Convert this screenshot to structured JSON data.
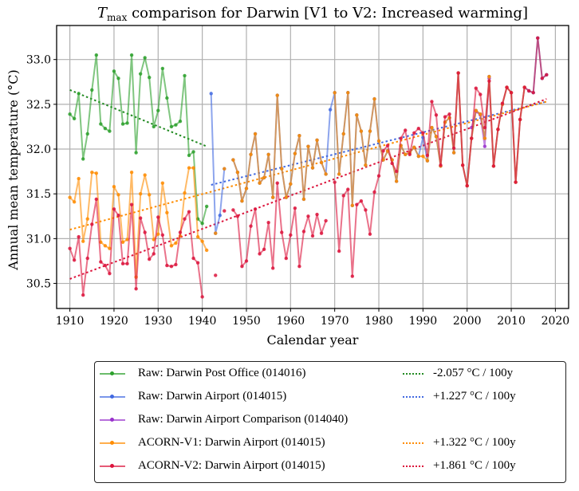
{
  "chart_data": {
    "type": "line",
    "title": "T_max comparison for Darwin   [V1 to V2: Increased warming]",
    "title_parts": {
      "symbol": "T",
      "subscript": "max",
      "rest": " comparison for Darwin   [V1 to V2: Increased warming]"
    },
    "xlabel": "Calendar year",
    "ylabel": "Annual mean temperature (°C)",
    "xlim": [
      1907,
      2023
    ],
    "ylim": [
      30.22,
      33.38
    ],
    "xticks": [
      1910,
      1920,
      1930,
      1940,
      1950,
      1960,
      1970,
      1980,
      1990,
      2000,
      2010,
      2020
    ],
    "yticks": [
      30.5,
      31.0,
      31.5,
      32.0,
      32.5,
      33.0
    ],
    "xtick_labels": [
      "1910",
      "1920",
      "1930",
      "1940",
      "1950",
      "1960",
      "1970",
      "1980",
      "1990",
      "2000",
      "2010",
      "2020"
    ],
    "ytick_labels": [
      "30.5",
      "31.0",
      "31.5",
      "32.0",
      "32.5",
      "33.0"
    ],
    "grid": true,
    "legend_position": "below-center",
    "series": [
      {
        "name": "Raw: Darwin Post Office (014016)",
        "color": "#2ca02c",
        "x": [
          1910,
          1911,
          1912,
          1913,
          1914,
          1915,
          1916,
          1917,
          1918,
          1919,
          1920,
          1921,
          1922,
          1923,
          1924,
          1925,
          1926,
          1927,
          1928,
          1929,
          1930,
          1931,
          1932,
          1933,
          1934,
          1935,
          1936,
          1937,
          1938,
          1939,
          1940,
          1941
        ],
        "y": [
          32.39,
          32.34,
          32.62,
          31.89,
          32.17,
          32.66,
          33.05,
          32.28,
          32.23,
          32.2,
          32.87,
          32.79,
          32.28,
          32.29,
          33.05,
          31.96,
          32.84,
          33.02,
          32.8,
          32.25,
          32.43,
          32.9,
          32.57,
          32.25,
          32.27,
          32.31,
          32.82,
          31.93,
          31.97,
          31.22,
          31.17,
          31.36
        ]
      },
      {
        "name": "Raw: Darwin Airport (014015)",
        "color": "#4169e1",
        "x": [
          1942,
          1943,
          1944,
          1945,
          1946,
          1947,
          1948,
          1949,
          1950,
          1951,
          1952,
          1953,
          1954,
          1955,
          1956,
          1957,
          1958,
          1959,
          1960,
          1961,
          1962,
          1963,
          1964,
          1965,
          1966,
          1967,
          1968,
          1969,
          1970,
          1971,
          1972,
          1973,
          1974,
          1975,
          1976,
          1977,
          1978,
          1979,
          1980,
          1981,
          1982,
          1983,
          1984,
          1985,
          1986,
          1987,
          1988,
          1989,
          1990,
          1991,
          1992,
          1993,
          1994,
          1995,
          1996,
          1997,
          1998,
          1999,
          2000,
          2001,
          2002,
          2003,
          2004,
          2005,
          2006,
          2007,
          2008,
          2009,
          2010,
          2011,
          2012,
          2013,
          2014,
          2015,
          2016,
          2017,
          2018
        ],
        "y": [
          32.62,
          31.06,
          31.26,
          31.78,
          null,
          31.88,
          31.74,
          31.42,
          31.56,
          31.94,
          32.17,
          31.62,
          31.68,
          31.94,
          31.46,
          32.6,
          31.78,
          31.46,
          31.61,
          31.95,
          32.15,
          31.44,
          32.03,
          31.79,
          32.1,
          31.85,
          31.72,
          32.44,
          32.63,
          31.72,
          32.17,
          32.63,
          31.37,
          32.38,
          32.2,
          31.82,
          32.2,
          32.56,
          32.09,
          31.88,
          31.98,
          31.88,
          31.64,
          32.04,
          31.94,
          31.96,
          32.02,
          31.92,
          32.13,
          31.87,
          32.24,
          32.14,
          31.81,
          32.3,
          32.35,
          31.96,
          32.85,
          31.82,
          31.59,
          32.12,
          32.43,
          32.39,
          32.12,
          32.81,
          31.81,
          32.22,
          32.5,
          32.69,
          32.63,
          31.63,
          32.33,
          32.69,
          32.65,
          32.63,
          33.24,
          32.79,
          32.83
        ]
      },
      {
        "name": "Raw: Darwin Airport Comparison (014040)",
        "color": "#9932cc",
        "x": [
          2001,
          2002,
          2003,
          2004,
          2005
        ],
        "y": [
          32.24,
          32.42,
          32.38,
          32.03,
          32.79
        ]
      },
      {
        "name": "ACORN-V1: Darwin Airport (014015)",
        "color": "#ff8c00",
        "x": [
          1910,
          1911,
          1912,
          1913,
          1914,
          1915,
          1916,
          1917,
          1918,
          1919,
          1920,
          1921,
          1922,
          1923,
          1924,
          1925,
          1926,
          1927,
          1928,
          1929,
          1930,
          1931,
          1932,
          1933,
          1934,
          1935,
          1936,
          1937,
          1938,
          1939,
          1940,
          1941,
          1942,
          1943,
          1944,
          1945,
          1946,
          1947,
          1948,
          1949,
          1950,
          1951,
          1952,
          1953,
          1954,
          1955,
          1956,
          1957,
          1958,
          1959,
          1960,
          1961,
          1962,
          1963,
          1964,
          1965,
          1966,
          1967,
          1968,
          1969,
          1970,
          1971,
          1972,
          1973,
          1974,
          1975,
          1976,
          1977,
          1978,
          1979,
          1980,
          1981,
          1982,
          1983,
          1984,
          1985,
          1986,
          1987,
          1988,
          1989,
          1990,
          1991,
          1992,
          1993,
          1994,
          1995,
          1996,
          1997,
          1998,
          1999,
          2000,
          2001,
          2002,
          2003,
          2004,
          2005,
          2006,
          2007,
          2008,
          2009,
          2010,
          2011,
          2012,
          2013
        ],
        "y": [
          31.46,
          31.41,
          31.67,
          30.97,
          31.22,
          31.74,
          31.73,
          30.96,
          30.92,
          30.89,
          31.58,
          31.49,
          30.96,
          30.99,
          31.74,
          30.57,
          31.5,
          31.71,
          31.49,
          30.99,
          31.05,
          31.62,
          31.29,
          30.92,
          30.95,
          31.03,
          31.51,
          31.79,
          31.79,
          31.02,
          30.97,
          30.87,
          null,
          31.06,
          null,
          31.78,
          null,
          31.88,
          31.74,
          31.42,
          31.56,
          31.94,
          32.17,
          31.62,
          31.68,
          31.94,
          31.46,
          32.6,
          31.78,
          31.46,
          31.61,
          31.95,
          32.15,
          31.44,
          32.03,
          31.79,
          32.1,
          31.85,
          31.72,
          null,
          32.63,
          31.72,
          32.17,
          32.63,
          31.37,
          32.38,
          32.2,
          31.82,
          32.2,
          32.56,
          32.09,
          31.88,
          31.98,
          31.88,
          31.64,
          32.04,
          31.94,
          31.96,
          32.02,
          31.92,
          31.92,
          31.87,
          32.24,
          32.14,
          31.81,
          32.3,
          32.35,
          31.96,
          32.85,
          31.82,
          31.59,
          32.12,
          32.43,
          32.39,
          32.12,
          32.81,
          31.81,
          32.22,
          32.5,
          32.69,
          32.63,
          31.63,
          32.33,
          32.69
        ]
      },
      {
        "name": "ACORN-V2: Darwin Airport (014015)",
        "color": "#dc143c",
        "x": [
          1910,
          1911,
          1912,
          1913,
          1914,
          1915,
          1916,
          1917,
          1918,
          1919,
          1920,
          1921,
          1922,
          1923,
          1924,
          1925,
          1926,
          1927,
          1928,
          1929,
          1930,
          1931,
          1932,
          1933,
          1934,
          1935,
          1936,
          1937,
          1938,
          1939,
          1940,
          1941,
          1942,
          1943,
          1944,
          1945,
          1946,
          1947,
          1948,
          1949,
          1950,
          1951,
          1952,
          1953,
          1954,
          1955,
          1956,
          1957,
          1958,
          1959,
          1960,
          1961,
          1962,
          1963,
          1964,
          1965,
          1966,
          1967,
          1968,
          1969,
          1970,
          1971,
          1972,
          1973,
          1974,
          1975,
          1976,
          1977,
          1978,
          1979,
          1980,
          1981,
          1982,
          1983,
          1984,
          1985,
          1986,
          1987,
          1988,
          1989,
          1990,
          1991,
          1992,
          1993,
          1994,
          1995,
          1996,
          1997,
          1998,
          1999,
          2000,
          2001,
          2002,
          2003,
          2004,
          2005,
          2006,
          2007,
          2008,
          2009,
          2010,
          2011,
          2012,
          2013,
          2014,
          2015,
          2016,
          2017,
          2018
        ],
        "y": [
          30.89,
          30.76,
          31.02,
          30.37,
          30.78,
          31.16,
          31.44,
          30.74,
          30.7,
          30.61,
          31.33,
          31.26,
          30.72,
          30.72,
          31.38,
          30.44,
          31.23,
          31.07,
          30.77,
          30.83,
          31.24,
          31.04,
          30.7,
          30.69,
          30.71,
          31.07,
          31.22,
          31.3,
          30.78,
          30.73,
          30.35,
          null,
          null,
          30.59,
          null,
          31.31,
          null,
          31.32,
          31.25,
          30.69,
          30.75,
          31.14,
          31.33,
          30.83,
          30.88,
          31.18,
          30.67,
          31.62,
          31.07,
          30.78,
          31.04,
          31.34,
          30.69,
          31.08,
          31.25,
          31.03,
          31.27,
          31.06,
          31.2,
          null,
          31.63,
          30.86,
          31.48,
          31.55,
          30.58,
          31.38,
          31.42,
          31.32,
          31.05,
          31.52,
          31.7,
          31.98,
          32.04,
          31.84,
          31.75,
          32.12,
          32.21,
          31.94,
          32.18,
          32.23,
          32.18,
          31.93,
          32.53,
          32.38,
          31.82,
          32.36,
          32.39,
          32.01,
          32.85,
          31.82,
          31.59,
          32.12,
          32.68,
          32.61,
          32.24,
          32.76,
          31.81,
          32.22,
          32.51,
          32.69,
          32.63,
          31.63,
          32.33,
          32.69,
          32.65,
          32.63,
          33.24,
          32.79,
          32.83
        ]
      }
    ],
    "trendlines": [
      {
        "label": "-2.057 °C/100y",
        "color": "#228b22",
        "x": [
          1910,
          1941
        ],
        "y": [
          32.66,
          32.03
        ]
      },
      {
        "label": "+1.227 °C/100y",
        "color": "#4169e1",
        "x": [
          1942,
          2018
        ],
        "y": [
          31.6,
          32.53
        ]
      },
      {
        "label": "+1.322 °C/100y",
        "color": "#ff8c00",
        "x": [
          1910,
          2018
        ],
        "y": [
          31.1,
          32.53
        ]
      },
      {
        "label": "+1.861 °C/100y",
        "color": "#dc143c",
        "x": [
          1910,
          2018
        ],
        "y": [
          30.55,
          32.56
        ]
      }
    ]
  },
  "legend": {
    "series_labels": [
      "Raw: Darwin Post Office (014016)",
      "Raw: Darwin Airport (014015)",
      "Raw: Darwin Airport Comparison (014040)",
      "ACORN-V1: Darwin Airport (014015)",
      "ACORN-V2: Darwin Airport (014015)"
    ],
    "series_colors": [
      "#2ca02c",
      "#4169e1",
      "#9932cc",
      "#ff8c00",
      "#dc143c"
    ],
    "trend_labels": [
      "-2.057 °C / 100y",
      "+1.227 °C / 100y",
      "+1.322 °C / 100y",
      "+1.861 °C / 100y"
    ],
    "trend_colors": [
      "#228b22",
      "#4169e1",
      "#ff8c00",
      "#dc143c"
    ]
  }
}
